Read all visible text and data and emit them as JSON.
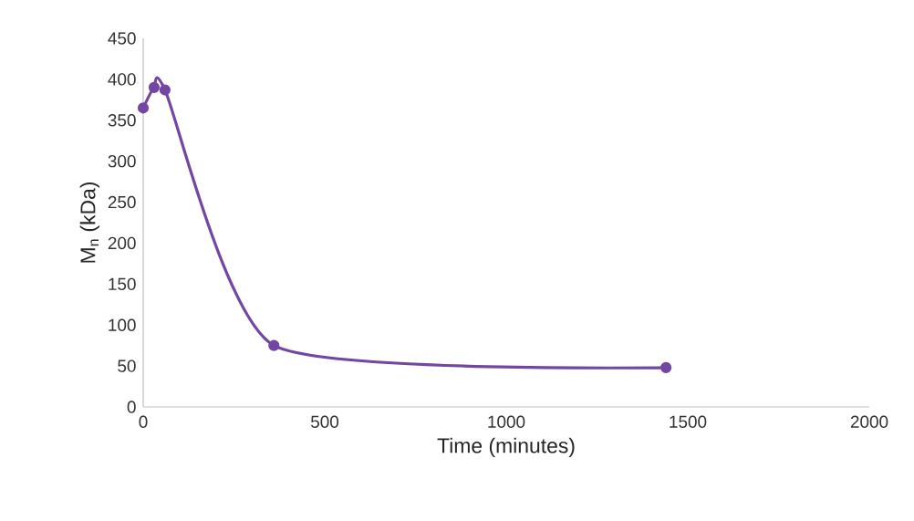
{
  "chart_data": {
    "type": "line",
    "xlabel": "Time (minutes)",
    "ylabel": "M$_{n}$ (kDa)",
    "x": [
      0,
      30,
      60,
      360,
      1440
    ],
    "series": [
      {
        "color": "#7446a4",
        "values": [
          365,
          390,
          387,
          75,
          48
        ]
      }
    ],
    "xlim": [
      0,
      2000
    ],
    "xticks": [
      0,
      500,
      1000,
      1500,
      2000
    ],
    "ylim": [
      0,
      450
    ],
    "yticks": [
      0,
      50,
      100,
      150,
      200,
      250,
      300,
      350,
      400,
      450
    ],
    "marker": "circle",
    "line_style": "solid"
  }
}
